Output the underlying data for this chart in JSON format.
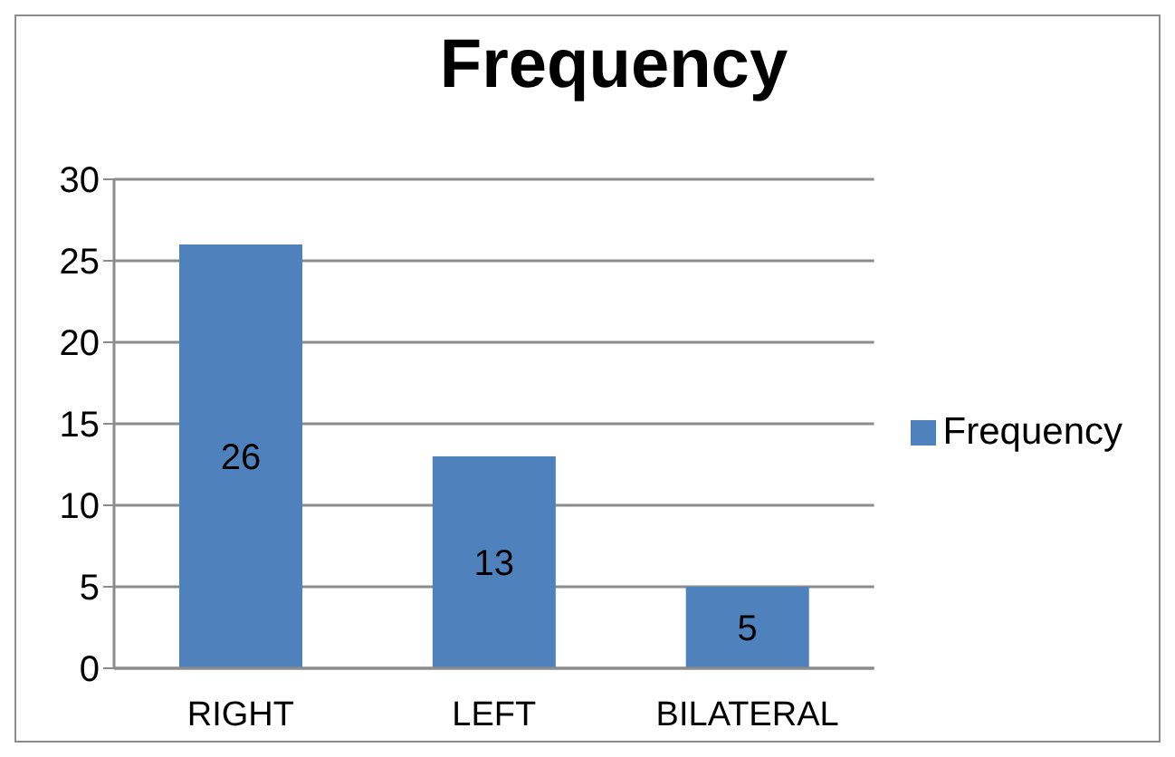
{
  "chart_data": {
    "type": "bar",
    "title": "Frequency",
    "categories": [
      "RIGHT",
      "LEFT",
      "BILATERAL"
    ],
    "series": [
      {
        "name": "Frequency",
        "color": "#4f81bd",
        "values": [
          26,
          13,
          5
        ]
      }
    ],
    "ylim": [
      0,
      30
    ],
    "yticks": [
      0,
      5,
      10,
      15,
      20,
      25,
      30
    ],
    "grid": "y",
    "legend": "right",
    "data_labels": true
  }
}
